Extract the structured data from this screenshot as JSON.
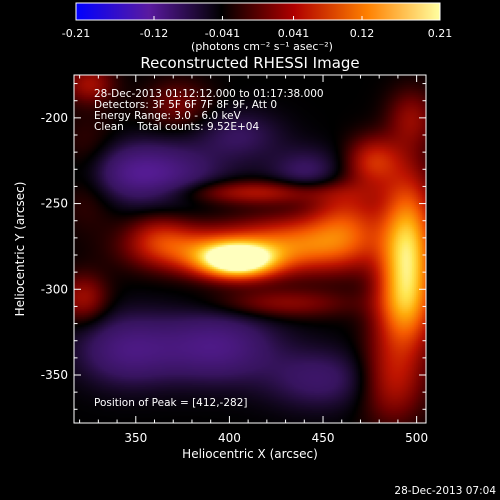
{
  "chart_data": {
    "type": "heatmap",
    "title": "Reconstructed RHESSI Image",
    "xlabel": "Heliocentric X (arcsec)",
    "ylabel": "Heliocentric Y (arcsec)",
    "xlim": [
      317,
      505
    ],
    "ylim": [
      -378,
      -175
    ],
    "xticks": [
      350,
      400,
      450,
      500
    ],
    "yticks": [
      -200,
      -250,
      -300,
      -350
    ],
    "colorbar": {
      "range": [
        -0.21,
        0.21
      ],
      "ticks": [
        "-0.21",
        "-0.12",
        "-0.041",
        "0.041",
        "0.12",
        "0.21"
      ],
      "unit_label": "(photons cm⁻² s⁻¹ asec⁻²)",
      "colors": [
        "#0000ff",
        "#5a1aa0",
        "#000000",
        "#b00000",
        "#ff8000",
        "#ffffa0"
      ]
    },
    "annotations": [
      "28-Dec-2013 01:12:12.000 to 01:17:38.000",
      "Detectors: 3F 5F 6F 7F 8F 9F, Att 0",
      "Energy Range: 3.0 - 6.0 keV",
      "Clean    Total counts: 9.52E+04"
    ],
    "peak_label": "Position of Peak = [412,-282]",
    "peak": [
      412,
      -282
    ],
    "sources": [
      {
        "x": 404,
        "y": -283,
        "sx": 14,
        "sy": 7,
        "amp": 0.23
      },
      {
        "x": 435,
        "y": -274,
        "sx": 26,
        "sy": 11,
        "amp": 0.12
      },
      {
        "x": 380,
        "y": -277,
        "sx": 22,
        "sy": 9,
        "amp": 0.09
      },
      {
        "x": 362,
        "y": -268,
        "sx": 12,
        "sy": 9,
        "amp": 0.05
      },
      {
        "x": 462,
        "y": -260,
        "sx": 14,
        "sy": 16,
        "amp": 0.08
      },
      {
        "x": 495,
        "y": -275,
        "sx": 10,
        "sy": 28,
        "amp": 0.17
      },
      {
        "x": 493,
        "y": -310,
        "sx": 11,
        "sy": 18,
        "amp": 0.09
      },
      {
        "x": 497,
        "y": -200,
        "sx": 9,
        "sy": 12,
        "amp": 0.05
      },
      {
        "x": 477,
        "y": -225,
        "sx": 10,
        "sy": 10,
        "amp": 0.08
      },
      {
        "x": 487,
        "y": -352,
        "sx": 12,
        "sy": 18,
        "amp": 0.07
      },
      {
        "x": 415,
        "y": -243,
        "sx": 30,
        "sy": 5,
        "amp": 0.07
      },
      {
        "x": 428,
        "y": -308,
        "sx": 26,
        "sy": 6,
        "amp": 0.05
      },
      {
        "x": 325,
        "y": -232,
        "sx": 12,
        "sy": 18,
        "amp": 0.05
      },
      {
        "x": 322,
        "y": -305,
        "sx": 9,
        "sy": 10,
        "amp": 0.06
      },
      {
        "x": 325,
        "y": -180,
        "sx": 9,
        "sy": 8,
        "amp": 0.06
      },
      {
        "x": 372,
        "y": -192,
        "sx": 12,
        "sy": 10,
        "amp": 0.04
      },
      {
        "x": 352,
        "y": -232,
        "sx": 26,
        "sy": 12,
        "amp": -0.1
      },
      {
        "x": 345,
        "y": -335,
        "sx": 18,
        "sy": 14,
        "amp": -0.07
      },
      {
        "x": 392,
        "y": -333,
        "sx": 22,
        "sy": 14,
        "amp": -0.08
      },
      {
        "x": 442,
        "y": -232,
        "sx": 14,
        "sy": 10,
        "amp": -0.05
      },
      {
        "x": 448,
        "y": -352,
        "sx": 20,
        "sy": 12,
        "amp": -0.05
      },
      {
        "x": 405,
        "y": -210,
        "sx": 16,
        "sy": 10,
        "amp": -0.04
      }
    ]
  },
  "footer": {
    "timestamp": "28-Dec-2013 07:04"
  }
}
